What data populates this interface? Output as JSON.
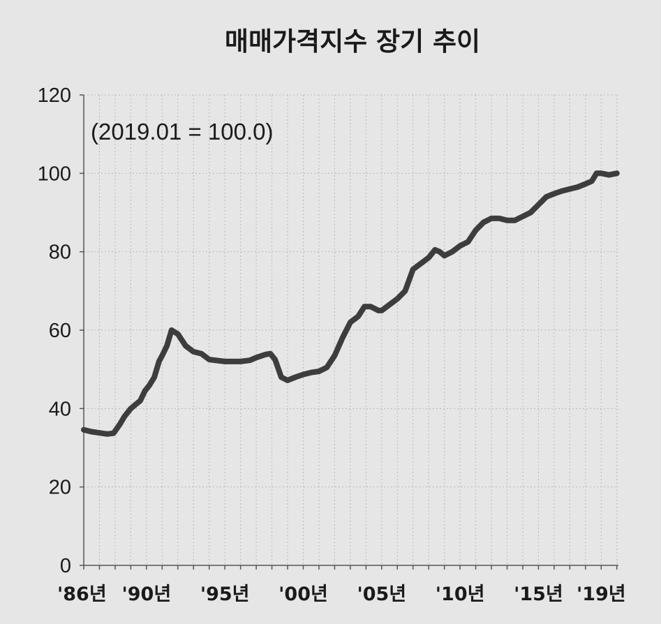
{
  "chart_data": {
    "type": "line",
    "title": "매매가격지수 장기 추이",
    "annotation": "(2019.01 = 100.0)",
    "xlabel": "",
    "ylabel": "",
    "ylim": [
      0,
      120
    ],
    "xlim": [
      1986.0,
      2020.1
    ],
    "y_ticks": [
      0,
      20,
      40,
      60,
      80,
      100,
      120
    ],
    "x_tick_labels": [
      {
        "year": 1986.0,
        "label": "'86년"
      },
      {
        "year": 1990.0,
        "label": "'90년"
      },
      {
        "year": 1995.0,
        "label": "'95년"
      },
      {
        "year": 2000.0,
        "label": "'00년"
      },
      {
        "year": 2005.0,
        "label": "'05년"
      },
      {
        "year": 2010.0,
        "label": "'10년"
      },
      {
        "year": 2015.0,
        "label": "'15년"
      },
      {
        "year": 2019.0,
        "label": "'19년"
      }
    ],
    "grid": true,
    "legend": "none",
    "line_color": "#3d3d3d",
    "series": [
      {
        "x": [
          1986.0,
          1986.5,
          1987.0,
          1987.5,
          1987.9,
          1988.3,
          1988.6,
          1989.0,
          1989.3,
          1989.6,
          1989.9,
          1990.2,
          1990.5,
          1990.8,
          1991.0,
          1991.3,
          1991.6,
          1992.0,
          1992.5,
          1993.0,
          1993.5,
          1994.0,
          1995.0,
          1996.0,
          1996.6,
          1997.0,
          1997.6,
          1997.9,
          1998.2,
          1998.6,
          1999.0,
          1999.5,
          2000.0,
          2000.5,
          2001.0,
          2001.5,
          2002.0,
          2002.5,
          2003.0,
          2003.5,
          2003.9,
          2004.3,
          2004.8,
          2005.0,
          2005.5,
          2006.0,
          2006.5,
          2007.0,
          2007.5,
          2008.0,
          2008.4,
          2008.7,
          2009.0,
          2009.5,
          2010.0,
          2010.5,
          2011.0,
          2011.5,
          2012.0,
          2012.5,
          2013.0,
          2013.5,
          2014.0,
          2014.5,
          2015.0,
          2015.5,
          2016.0,
          2016.5,
          2017.0,
          2017.5,
          2018.0,
          2018.4,
          2018.7,
          2019.0,
          2019.5,
          2020.0
        ],
        "y": [
          34.6,
          34.1,
          33.8,
          33.5,
          33.7,
          36.0,
          38.0,
          40.0,
          41.0,
          42.0,
          44.5,
          46.0,
          48.0,
          52.0,
          53.5,
          56.0,
          60.0,
          59.0,
          56.0,
          54.5,
          54.0,
          52.5,
          52.0,
          52.0,
          52.3,
          53.0,
          53.8,
          54.0,
          52.5,
          48.0,
          47.2,
          48.0,
          48.7,
          49.2,
          49.5,
          50.5,
          53.5,
          58.0,
          62.0,
          63.5,
          66.0,
          66.0,
          65.0,
          65.0,
          66.5,
          68.0,
          70.0,
          75.5,
          77.0,
          78.5,
          80.5,
          80.0,
          79.0,
          80.0,
          81.5,
          82.5,
          85.5,
          87.5,
          88.5,
          88.5,
          88.0,
          88.0,
          89.0,
          90.0,
          92.0,
          94.0,
          94.8,
          95.5,
          96.0,
          96.5,
          97.3,
          98.0,
          100.0,
          100.0,
          99.6,
          100.0
        ]
      }
    ]
  }
}
